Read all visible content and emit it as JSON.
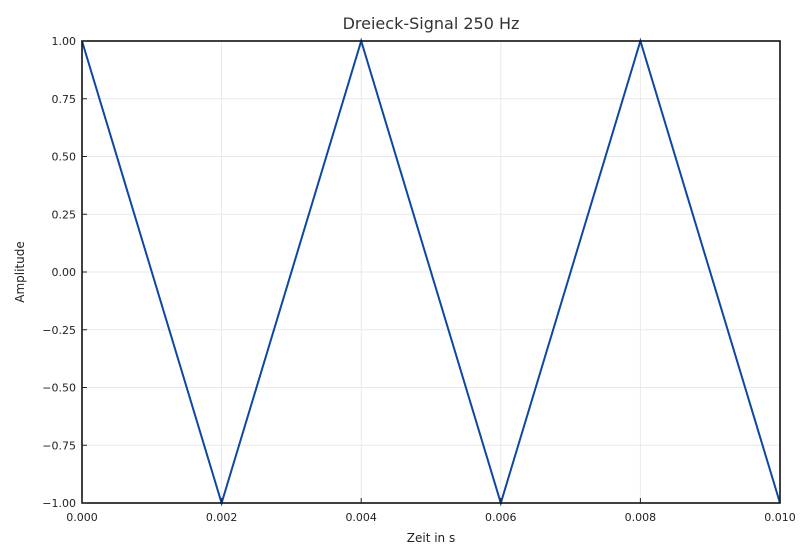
{
  "chart_data": {
    "type": "line",
    "title": "Dreieck-Signal 250 Hz",
    "xlabel": "Zeit in s",
    "ylabel": "Amplitude",
    "xlim": [
      0.0,
      0.01
    ],
    "ylim": [
      -1.0,
      1.0
    ],
    "grid": true,
    "x_ticks": [
      0.0,
      0.002,
      0.004,
      0.006,
      0.008,
      0.01
    ],
    "x_tick_labels": [
      "0.000",
      "0.002",
      "0.004",
      "0.006",
      "0.008",
      "0.010"
    ],
    "y_ticks": [
      1.0,
      0.75,
      0.5,
      0.25,
      0.0,
      -0.25,
      -0.5,
      -0.75,
      -1.0
    ],
    "y_tick_labels": [
      "1.00",
      "0.75",
      "0.50",
      "0.25",
      "0.00",
      "−0.25",
      "−0.50",
      "−0.75",
      "−1.00"
    ],
    "series": [
      {
        "color": "#0d47a1",
        "x": [
          0.0,
          0.002,
          0.004,
          0.006,
          0.008,
          0.01
        ],
        "y": [
          1.0,
          -1.0,
          1.0,
          -1.0,
          1.0,
          -1.0
        ]
      }
    ]
  }
}
